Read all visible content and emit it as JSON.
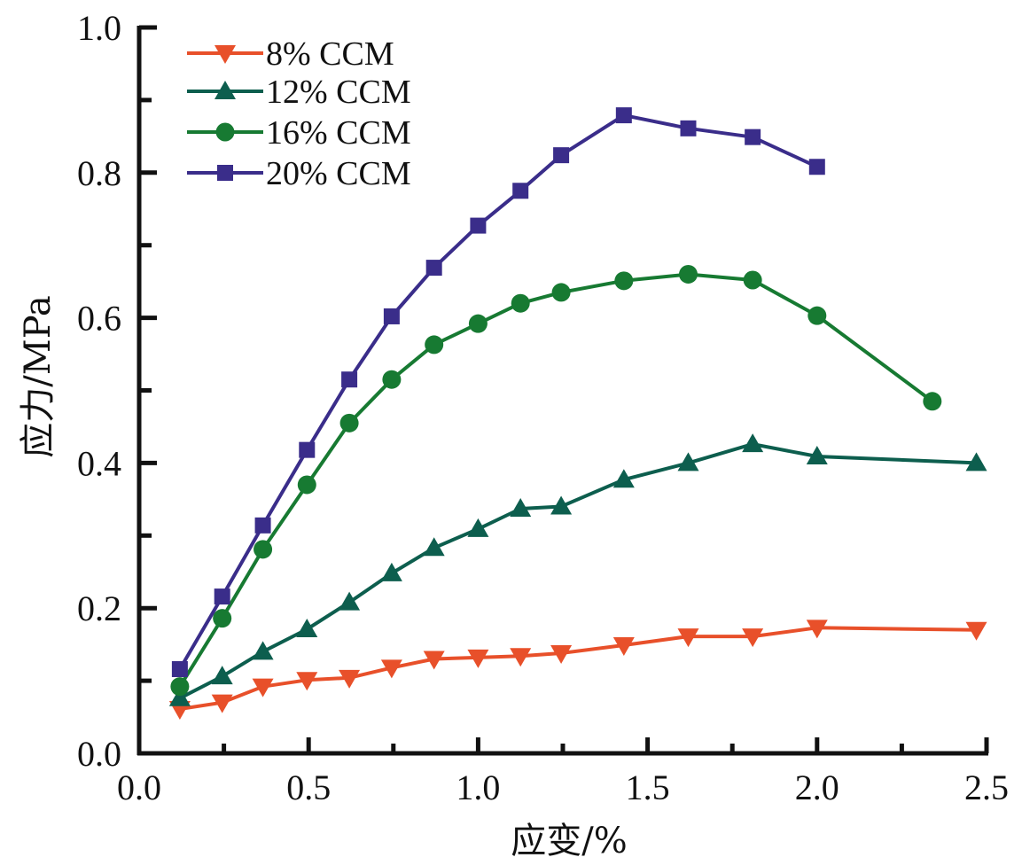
{
  "chart_data": {
    "type": "line",
    "title": "",
    "xlabel": "应变/%",
    "ylabel": "应力/MPa",
    "xlim": [
      0.0,
      2.5
    ],
    "ylim": [
      0.0,
      1.0
    ],
    "xticks": [
      "0.0",
      "0.5",
      "1.0",
      "1.5",
      "2.0",
      "2.5"
    ],
    "xtick_values": [
      0.0,
      0.5,
      1.0,
      1.5,
      2.0,
      2.5
    ],
    "xminor_values": [
      0.25,
      0.75,
      1.25,
      1.75,
      2.25
    ],
    "yticks": [
      "0.0",
      "0.2",
      "0.4",
      "0.6",
      "0.8",
      "1.0"
    ],
    "ytick_values": [
      0.0,
      0.2,
      0.4,
      0.6,
      0.8,
      1.0
    ],
    "yminor_values": [
      0.1,
      0.3,
      0.5,
      0.7,
      0.9
    ],
    "grid": false,
    "legend_position": "top-left",
    "series": [
      {
        "name": "8% CCM",
        "color": "#e8502a",
        "marker": "triangle-down",
        "x": [
          0.12,
          0.245,
          0.365,
          0.495,
          0.62,
          0.745,
          0.87,
          1.0,
          1.125,
          1.245,
          1.43,
          1.62,
          1.81,
          2.0,
          2.47
        ],
        "y": [
          0.061,
          0.07,
          0.092,
          0.101,
          0.104,
          0.118,
          0.13,
          0.132,
          0.134,
          0.138,
          0.149,
          0.161,
          0.161,
          0.173,
          0.17
        ]
      },
      {
        "name": "12% CCM",
        "color": "#0d5e4e",
        "marker": "triangle-up",
        "x": [
          0.12,
          0.245,
          0.365,
          0.495,
          0.62,
          0.745,
          0.87,
          1.0,
          1.125,
          1.245,
          1.43,
          1.62,
          1.81,
          2.0,
          2.47
        ],
        "y": [
          0.076,
          0.106,
          0.14,
          0.171,
          0.208,
          0.248,
          0.283,
          0.309,
          0.337,
          0.34,
          0.377,
          0.4,
          0.426,
          0.409,
          0.4
        ]
      },
      {
        "name": "16% CCM",
        "color": "#177a32",
        "marker": "circle",
        "x": [
          0.12,
          0.245,
          0.365,
          0.495,
          0.62,
          0.745,
          0.87,
          1.0,
          1.125,
          1.245,
          1.43,
          1.62,
          1.81,
          2.0,
          2.34
        ],
        "y": [
          0.092,
          0.186,
          0.281,
          0.37,
          0.455,
          0.515,
          0.563,
          0.592,
          0.62,
          0.635,
          0.651,
          0.66,
          0.652,
          0.603,
          0.485
        ]
      },
      {
        "name": "20% CCM",
        "color": "#3a2d8a",
        "marker": "square",
        "x": [
          0.12,
          0.245,
          0.365,
          0.495,
          0.62,
          0.745,
          0.87,
          1.0,
          1.125,
          1.245,
          1.43,
          1.62,
          1.81,
          2.0
        ],
        "y": [
          0.116,
          0.216,
          0.314,
          0.418,
          0.515,
          0.602,
          0.669,
          0.727,
          0.775,
          0.824,
          0.879,
          0.861,
          0.849,
          0.808
        ]
      }
    ]
  }
}
